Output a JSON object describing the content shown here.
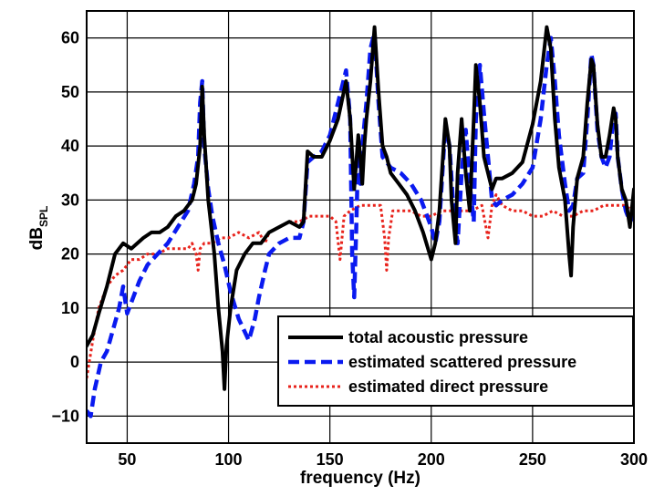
{
  "chart_data": {
    "type": "line",
    "xlabel": "frequency (Hz)",
    "ylabel": {
      "main": "dB",
      "sub": "SPL"
    },
    "xlim": [
      30,
      300
    ],
    "ylim": [
      -15,
      65
    ],
    "x_ticks": [
      50,
      100,
      150,
      200,
      250,
      300
    ],
    "y_ticks": [
      -10,
      0,
      10,
      20,
      30,
      40,
      50,
      60
    ],
    "grid": true,
    "legend_position": "bottom-right",
    "series": [
      {
        "name": "total acoustic pressure",
        "color": "#000000",
        "style": "solid",
        "x": [
          30,
          33,
          36,
          40,
          44,
          48,
          52,
          55,
          58,
          62,
          66,
          70,
          74,
          78,
          82,
          84,
          86,
          87,
          88,
          90,
          93,
          95,
          97,
          98,
          99,
          101,
          104,
          108,
          112,
          116,
          120,
          125,
          130,
          135,
          137,
          139,
          142,
          146,
          150,
          154,
          158,
          160,
          162,
          164,
          165,
          166,
          167,
          168,
          170,
          172,
          174,
          176,
          178,
          180,
          184,
          188,
          192,
          196,
          200,
          202,
          204,
          207,
          209,
          210,
          212,
          213,
          215,
          217,
          219,
          221,
          222,
          224,
          226,
          228,
          230,
          232,
          235,
          240,
          245,
          250,
          254,
          257,
          259,
          261,
          263,
          266,
          268,
          269,
          270,
          272,
          275,
          277,
          279,
          280,
          282,
          284,
          286,
          288,
          290,
          291,
          292,
          294,
          296,
          298,
          300
        ],
        "y": [
          3,
          5,
          9,
          14,
          20,
          22,
          21,
          22,
          23,
          24,
          24,
          25,
          27,
          28,
          30,
          33,
          40,
          51,
          42,
          30,
          20,
          10,
          2,
          -5,
          3,
          10,
          17,
          20,
          22,
          22,
          24,
          25,
          26,
          25,
          26,
          39,
          38,
          38,
          41,
          45,
          52,
          45,
          32,
          42,
          38,
          33,
          40,
          45,
          52,
          62,
          50,
          40,
          38,
          35,
          33,
          31,
          28,
          24,
          19,
          22,
          28,
          45,
          40,
          30,
          22,
          35,
          45,
          35,
          28,
          45,
          55,
          48,
          38,
          35,
          32,
          34,
          34,
          35,
          37,
          44,
          52,
          62,
          58,
          45,
          36,
          30,
          20,
          16,
          25,
          34,
          38,
          48,
          56,
          55,
          44,
          38,
          38,
          42,
          47,
          45,
          38,
          32,
          30,
          25,
          32
        ]
      },
      {
        "name": "estimated scattered pressure",
        "color": "#0a1af0",
        "style": "dashed",
        "x": [
          30,
          32,
          34,
          37,
          40,
          43,
          46,
          48,
          50,
          53,
          56,
          60,
          65,
          70,
          75,
          80,
          83,
          85,
          86,
          87,
          88,
          90,
          92,
          95,
          98,
          101,
          105,
          110,
          113,
          115,
          118,
          120,
          125,
          130,
          135,
          137,
          139,
          142,
          146,
          150,
          154,
          158,
          160,
          161,
          162,
          163,
          164,
          165,
          166,
          168,
          170,
          172,
          174,
          176,
          180,
          185,
          190,
          195,
          200,
          202,
          204,
          207,
          209,
          211,
          213,
          215,
          217,
          219,
          221,
          222,
          224,
          226,
          228,
          230,
          232,
          235,
          240,
          245,
          250,
          254,
          257,
          259,
          261,
          263,
          266,
          268,
          270,
          272,
          275,
          277,
          279,
          280,
          282,
          284,
          286,
          288,
          290,
          291,
          292,
          294,
          296,
          298,
          300
        ],
        "y": [
          -9,
          -10,
          -5,
          0,
          2,
          6,
          10,
          14,
          9,
          12,
          15,
          18,
          20,
          22,
          25,
          28,
          33,
          38,
          48,
          52,
          40,
          32,
          27,
          22,
          18,
          13,
          8,
          4,
          8,
          12,
          17,
          20,
          22,
          23,
          23,
          26,
          37,
          38,
          39,
          42,
          48,
          54,
          45,
          20,
          12,
          25,
          40,
          33,
          40,
          48,
          58,
          61,
          48,
          38,
          36,
          35,
          33,
          30,
          25,
          22,
          26,
          44,
          40,
          28,
          22,
          35,
          43,
          33,
          26,
          45,
          55,
          46,
          38,
          30,
          29,
          30,
          31,
          33,
          36,
          45,
          55,
          60,
          52,
          42,
          33,
          28,
          29,
          34,
          35,
          45,
          57,
          55,
          43,
          38,
          36,
          38,
          46,
          46,
          38,
          32,
          28,
          26,
          27
        ]
      },
      {
        "name": "estimated direct pressure",
        "color": "#e8231c",
        "style": "dotted",
        "x": [
          30,
          33,
          36,
          40,
          44,
          48,
          52,
          56,
          60,
          65,
          70,
          75,
          80,
          82,
          84,
          85,
          86,
          88,
          92,
          96,
          100,
          105,
          110,
          115,
          118,
          120,
          125,
          130,
          135,
          140,
          145,
          150,
          153,
          155,
          157,
          160,
          165,
          170,
          175,
          177,
          178,
          179,
          181,
          185,
          190,
          195,
          200,
          205,
          210,
          215,
          220,
          225,
          228,
          230,
          232,
          235,
          240,
          245,
          250,
          255,
          260,
          265,
          270,
          275,
          280,
          285,
          290,
          295,
          300
        ],
        "y": [
          -3,
          4,
          10,
          14,
          16,
          17,
          19,
          19,
          20,
          20,
          21,
          21,
          21,
          22,
          20,
          17,
          21,
          22,
          22,
          23,
          23,
          24,
          23,
          24,
          22,
          24,
          25,
          26,
          26,
          27,
          27,
          27,
          26,
          19,
          27,
          28,
          29,
          29,
          29,
          23,
          17,
          23,
          28,
          28,
          28,
          27,
          27,
          28,
          28,
          28,
          28,
          29,
          23,
          29,
          31,
          29,
          28,
          28,
          27,
          27,
          28,
          27,
          27,
          28,
          28,
          29,
          29,
          29,
          28
        ]
      }
    ]
  }
}
